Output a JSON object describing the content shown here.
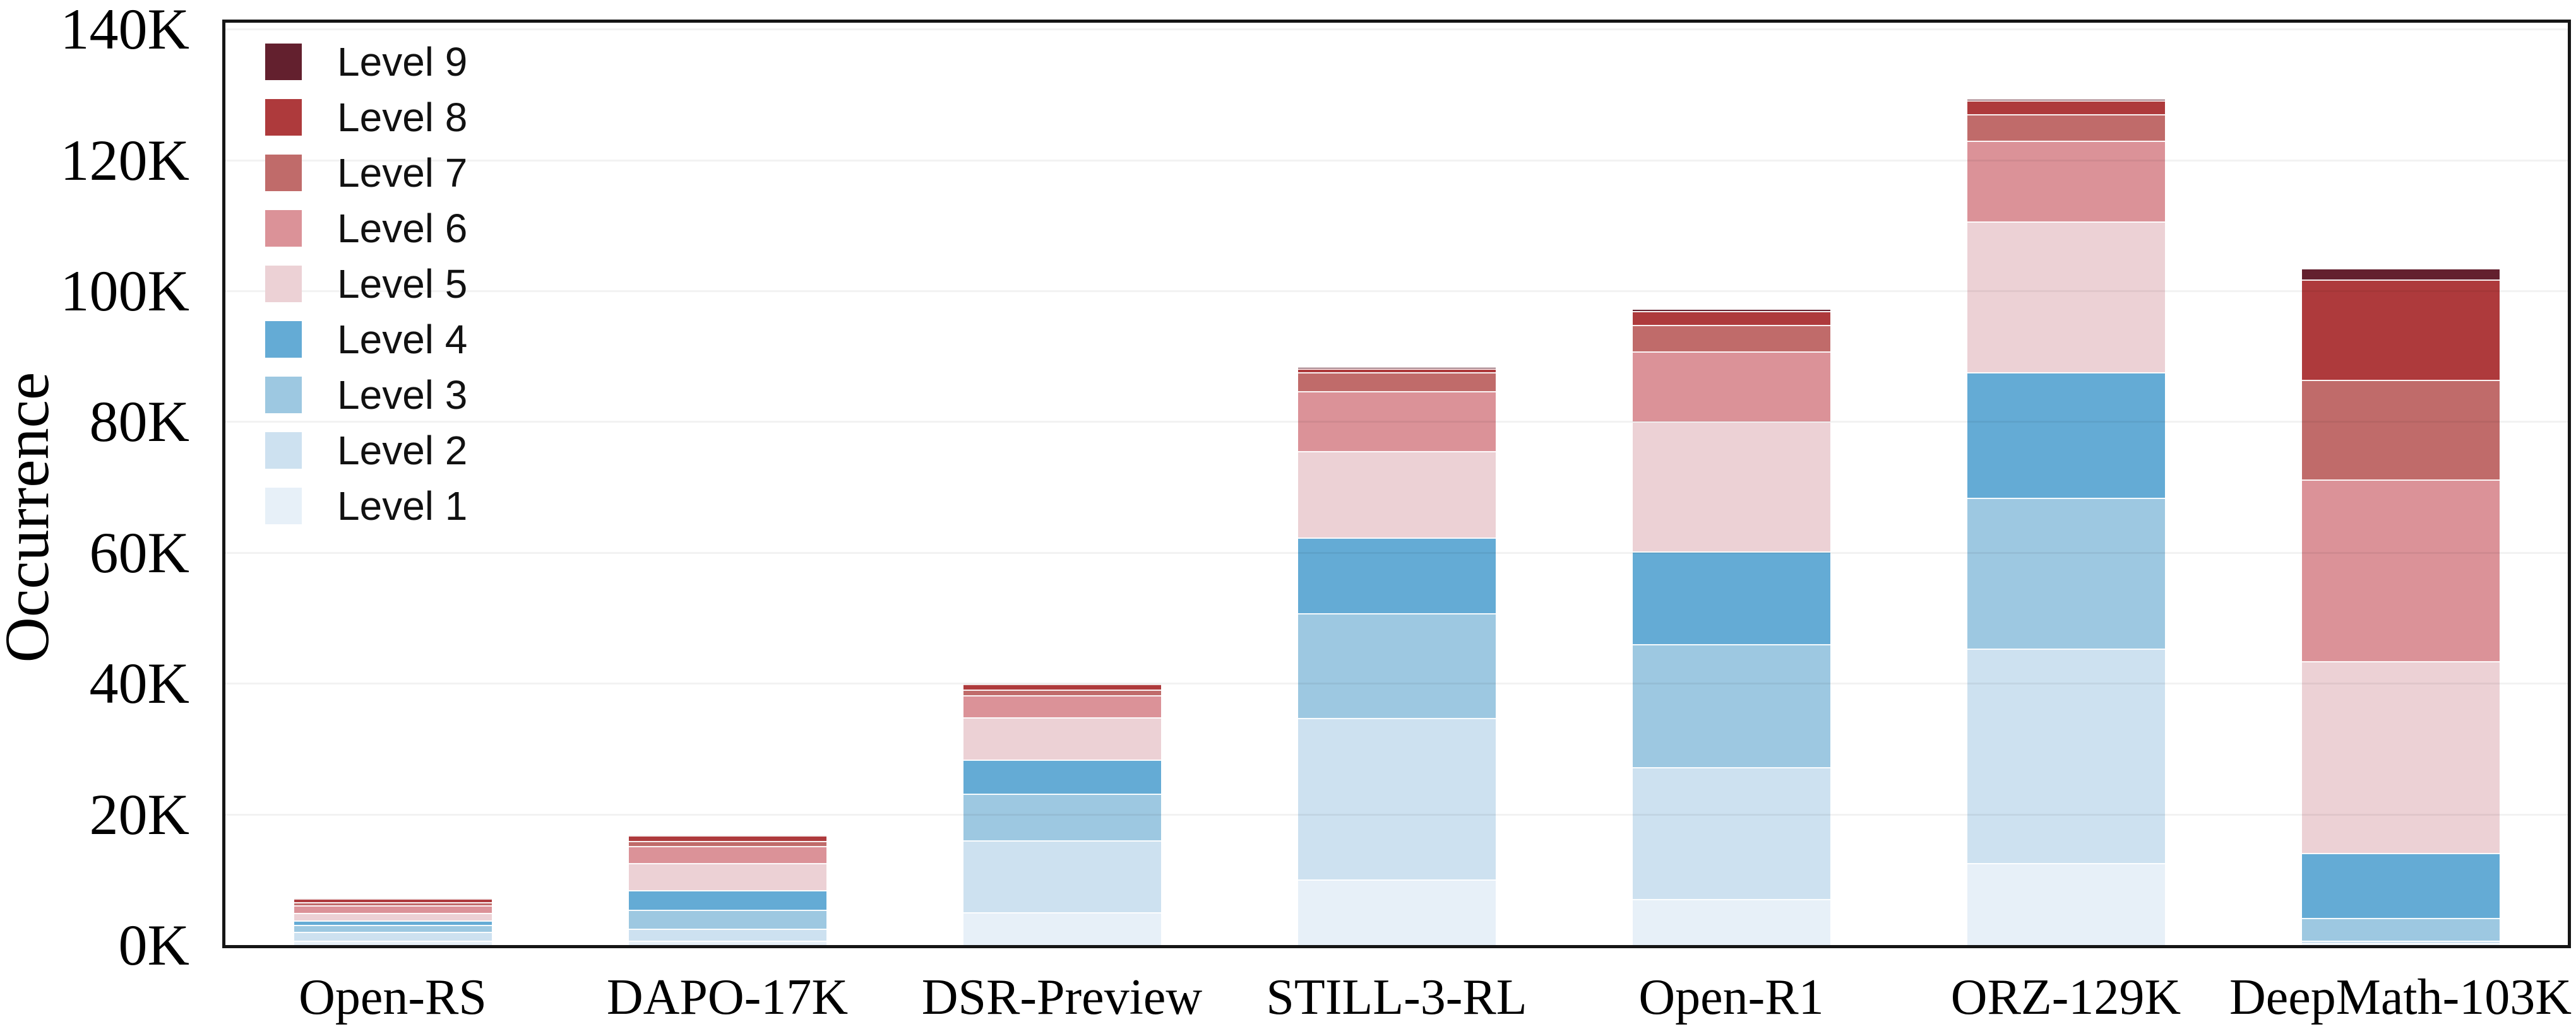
{
  "figure": {
    "background": "#ffffff",
    "axis_color": "#151515",
    "gridline_color": "rgba(0,0,0,0.05)"
  },
  "chart_data": {
    "type": "bar",
    "stacked": true,
    "title": "",
    "xlabel": "",
    "ylabel": "Occurrence",
    "unit": "K",
    "ylim": [
      0,
      141
    ],
    "grid": true,
    "legend_position": "upper-left",
    "legend_order_top_to_bottom": [
      "Level 9",
      "Level 8",
      "Level 7",
      "Level 6",
      "Level 5",
      "Level 4",
      "Level 3",
      "Level 2",
      "Level 1"
    ],
    "yticks": [
      0,
      20,
      40,
      60,
      80,
      100,
      120,
      140
    ],
    "ytick_labels": [
      "0K",
      "20K",
      "40K",
      "60K",
      "80K",
      "100K",
      "120K",
      "140K"
    ],
    "categories": [
      "Open-RS",
      "DAPO-17K",
      "DSR-Preview",
      "STILL-3-RL",
      "Open-R1",
      "ORZ-129K",
      "DeepMath-103K"
    ],
    "totals_k": [
      7.1,
      16.75,
      39.9,
      88.2,
      97.1,
      129.2,
      103.3
    ],
    "series": [
      {
        "name": "Level 1",
        "color": "#e7f0f8",
        "values": [
          0.55,
          0.6,
          4.95,
          9.9,
          6.9,
          12.4,
          0.2
        ]
      },
      {
        "name": "Level 2",
        "color": "#cde1f0",
        "values": [
          1.35,
          1.85,
          11.0,
          24.7,
          20.2,
          32.8,
          0.35
        ]
      },
      {
        "name": "Level 3",
        "color": "#9dc8e1",
        "values": [
          1.05,
          2.85,
          7.1,
          16.0,
          18.8,
          23.1,
          3.5
        ]
      },
      {
        "name": "Level 4",
        "color": "#64abd5",
        "values": [
          0.75,
          2.95,
          5.2,
          11.65,
          14.2,
          19.2,
          9.95
        ]
      },
      {
        "name": "Level 5",
        "color": "#ecd1d5",
        "values": [
          1.15,
          4.15,
          6.45,
          13.2,
          19.9,
          23.0,
          29.3
        ]
      },
      {
        "name": "Level 6",
        "color": "#db9298",
        "values": [
          1.1,
          2.6,
          3.4,
          9.1,
          10.7,
          12.4,
          27.8
        ]
      },
      {
        "name": "Level 7",
        "color": "#c06b6a",
        "values": [
          0.5,
          0.8,
          0.85,
          2.9,
          4.0,
          4.0,
          15.2
        ]
      },
      {
        "name": "Level 8",
        "color": "#ae3a3c",
        "values": [
          0.55,
          0.85,
          0.85,
          0.6,
          2.15,
          2.1,
          15.4
        ]
      },
      {
        "name": "Level 9",
        "color": "#63202e",
        "values": [
          0.1,
          0.1,
          0.1,
          0.15,
          0.25,
          0.2,
          1.6
        ]
      }
    ]
  }
}
